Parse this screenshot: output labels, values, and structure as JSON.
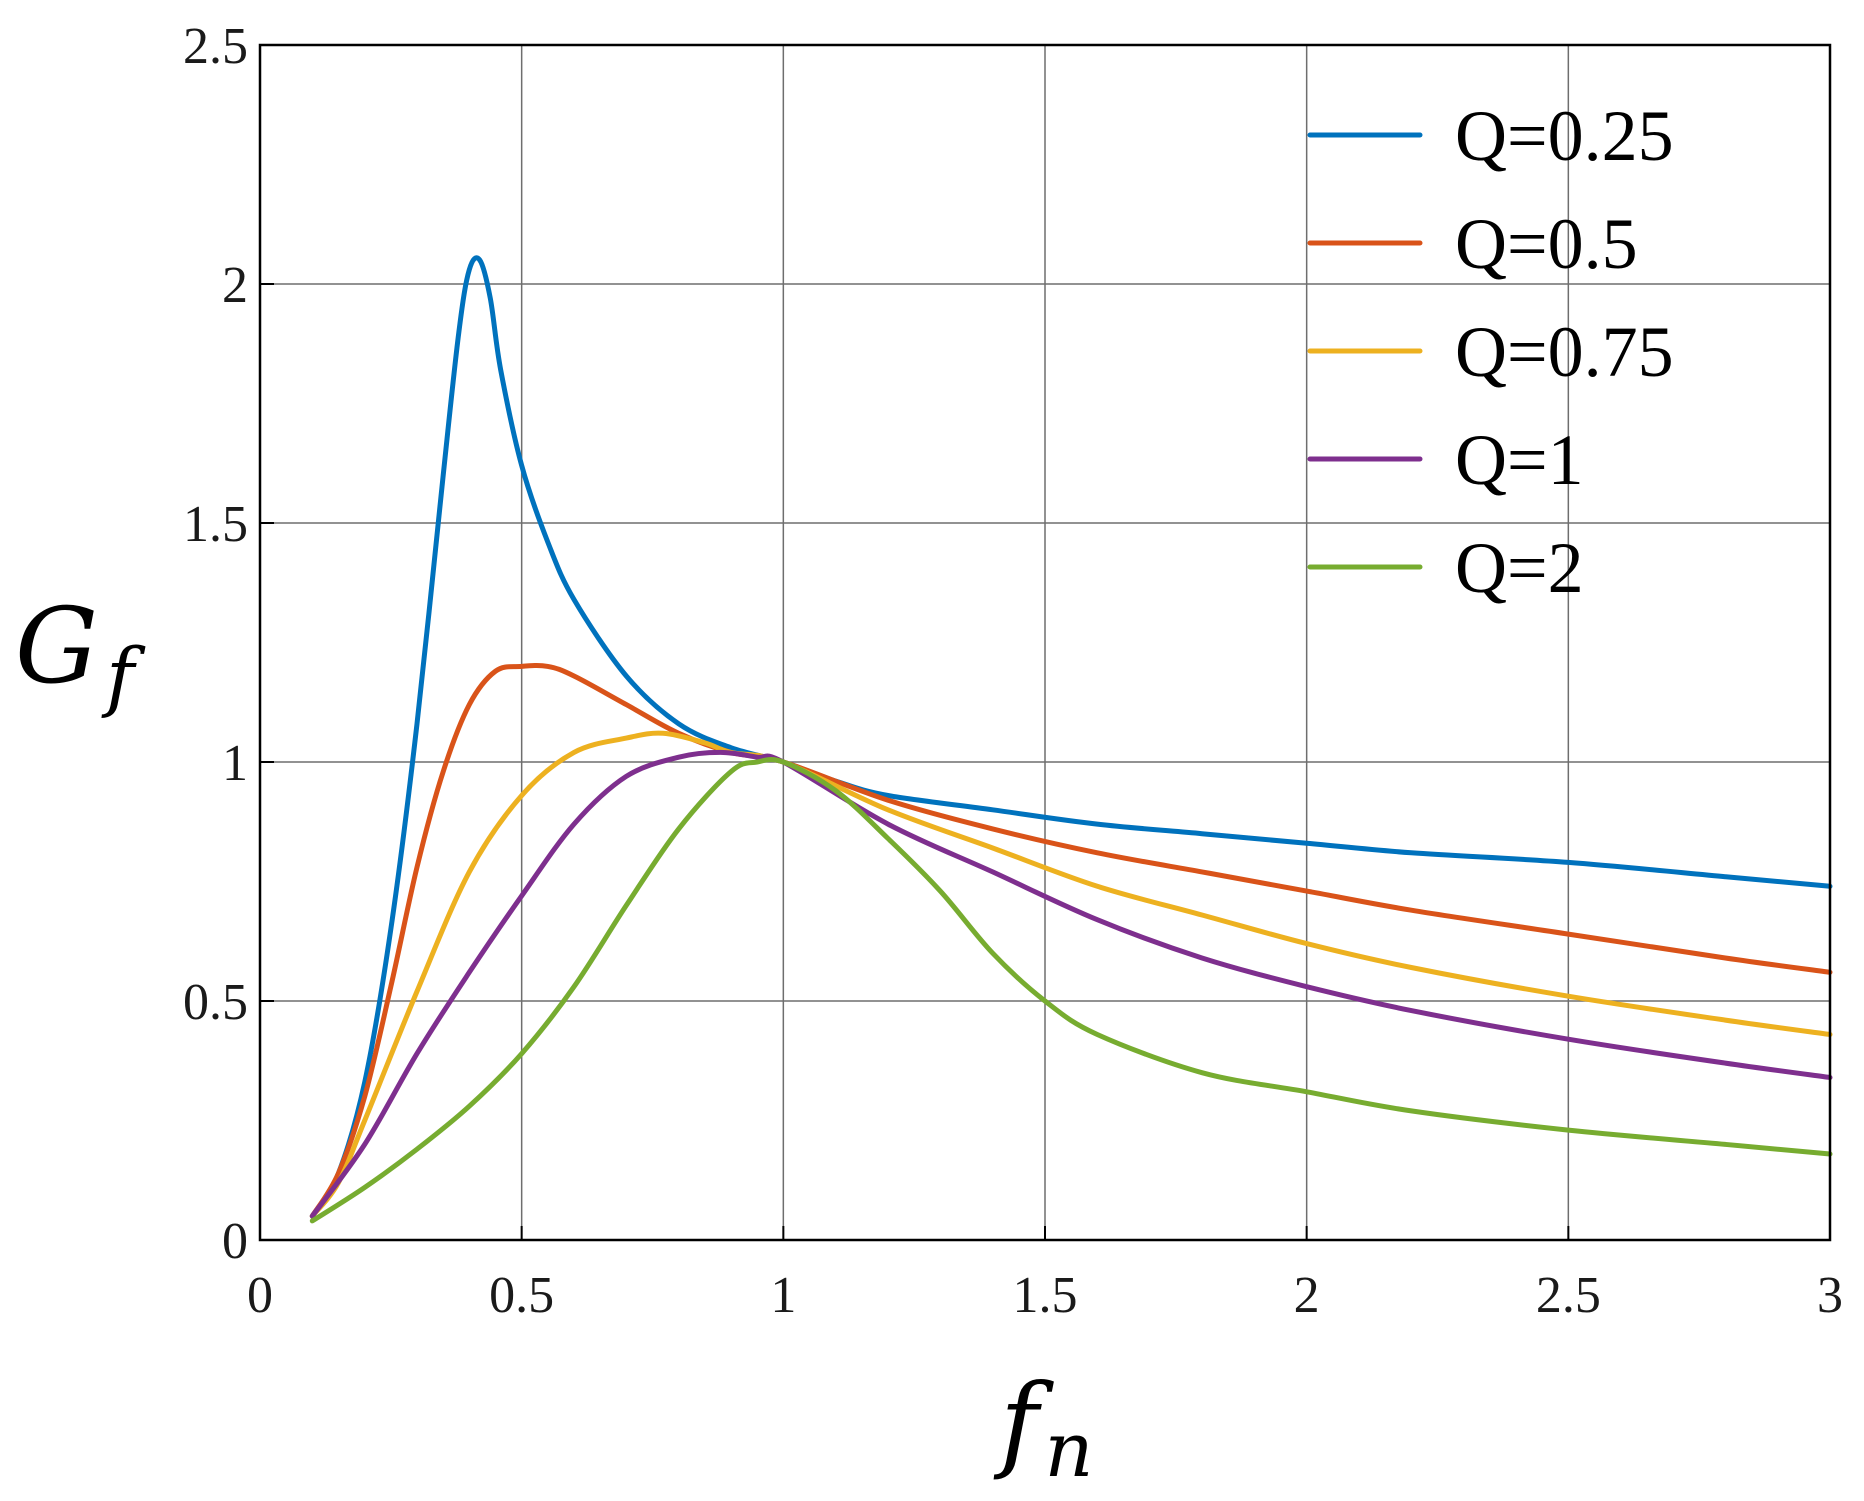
{
  "chart_data": {
    "type": "line",
    "xlabel": "f",
    "xlabel_sub": "n",
    "ylabel": "G",
    "ylabel_sub": "f",
    "xlim": [
      0,
      3
    ],
    "ylim": [
      0,
      2.5
    ],
    "x_ticks": [
      0,
      0.5,
      1,
      1.5,
      2,
      2.5,
      3
    ],
    "x_tick_labels": [
      "0",
      "0.5",
      "1",
      "1.5",
      "2",
      "2.5",
      "3"
    ],
    "y_ticks": [
      0,
      0.5,
      1,
      1.5,
      2,
      2.5
    ],
    "y_tick_labels": [
      "0",
      "0.5",
      "1",
      "1.5",
      "2",
      "2.5"
    ],
    "grid": true,
    "legend_position": "top-right",
    "series": [
      {
        "name": "Q=0.25",
        "color": "#0072BD",
        "x": [
          0.1,
          0.15,
          0.2,
          0.25,
          0.3,
          0.35,
          0.38,
          0.4,
          0.42,
          0.44,
          0.46,
          0.5,
          0.55,
          0.6,
          0.7,
          0.8,
          0.9,
          1.0,
          1.1,
          1.2,
          1.4,
          1.6,
          1.8,
          2.0,
          2.2,
          2.5,
          2.8,
          3.0
        ],
        "values": [
          0.05,
          0.14,
          0.33,
          0.65,
          1.08,
          1.6,
          1.9,
          2.03,
          2.05,
          1.97,
          1.82,
          1.62,
          1.46,
          1.34,
          1.18,
          1.08,
          1.03,
          1.0,
          0.96,
          0.93,
          0.9,
          0.87,
          0.85,
          0.83,
          0.81,
          0.79,
          0.76,
          0.74
        ]
      },
      {
        "name": "Q=0.5",
        "color": "#D95319",
        "x": [
          0.1,
          0.15,
          0.2,
          0.25,
          0.3,
          0.35,
          0.4,
          0.45,
          0.5,
          0.55,
          0.6,
          0.7,
          0.8,
          0.9,
          1.0,
          1.2,
          1.4,
          1.6,
          1.8,
          2.0,
          2.2,
          2.5,
          2.8,
          3.0
        ],
        "values": [
          0.05,
          0.14,
          0.3,
          0.53,
          0.78,
          0.98,
          1.12,
          1.19,
          1.2,
          1.2,
          1.18,
          1.12,
          1.06,
          1.02,
          1.0,
          0.92,
          0.86,
          0.81,
          0.77,
          0.73,
          0.69,
          0.64,
          0.59,
          0.56
        ]
      },
      {
        "name": "Q=0.75",
        "color": "#EDB120",
        "x": [
          0.1,
          0.15,
          0.2,
          0.3,
          0.4,
          0.5,
          0.6,
          0.7,
          0.77,
          0.85,
          0.9,
          1.0,
          1.2,
          1.4,
          1.6,
          1.8,
          2.0,
          2.2,
          2.5,
          2.8,
          3.0
        ],
        "values": [
          0.05,
          0.12,
          0.25,
          0.52,
          0.77,
          0.93,
          1.02,
          1.05,
          1.06,
          1.04,
          1.02,
          1.0,
          0.9,
          0.82,
          0.74,
          0.68,
          0.62,
          0.57,
          0.51,
          0.46,
          0.43
        ]
      },
      {
        "name": "Q=1",
        "color": "#7E2F8E",
        "x": [
          0.1,
          0.2,
          0.3,
          0.4,
          0.5,
          0.6,
          0.7,
          0.8,
          0.88,
          0.95,
          1.0,
          1.2,
          1.4,
          1.6,
          1.8,
          2.0,
          2.2,
          2.5,
          2.8,
          3.0
        ],
        "values": [
          0.05,
          0.2,
          0.39,
          0.56,
          0.72,
          0.87,
          0.97,
          1.01,
          1.02,
          1.01,
          1.0,
          0.87,
          0.77,
          0.67,
          0.59,
          0.53,
          0.48,
          0.42,
          0.37,
          0.34
        ]
      },
      {
        "name": "Q=2",
        "color": "#77AC30",
        "x": [
          0.1,
          0.2,
          0.3,
          0.4,
          0.5,
          0.6,
          0.7,
          0.8,
          0.9,
          0.95,
          1.0,
          1.1,
          1.2,
          1.3,
          1.4,
          1.5,
          1.6,
          1.8,
          2.0,
          2.2,
          2.5,
          2.8,
          3.0
        ],
        "values": [
          0.04,
          0.11,
          0.19,
          0.28,
          0.39,
          0.53,
          0.7,
          0.86,
          0.98,
          1.0,
          1.0,
          0.94,
          0.84,
          0.73,
          0.6,
          0.5,
          0.43,
          0.35,
          0.31,
          0.27,
          0.23,
          0.2,
          0.18
        ]
      }
    ]
  }
}
